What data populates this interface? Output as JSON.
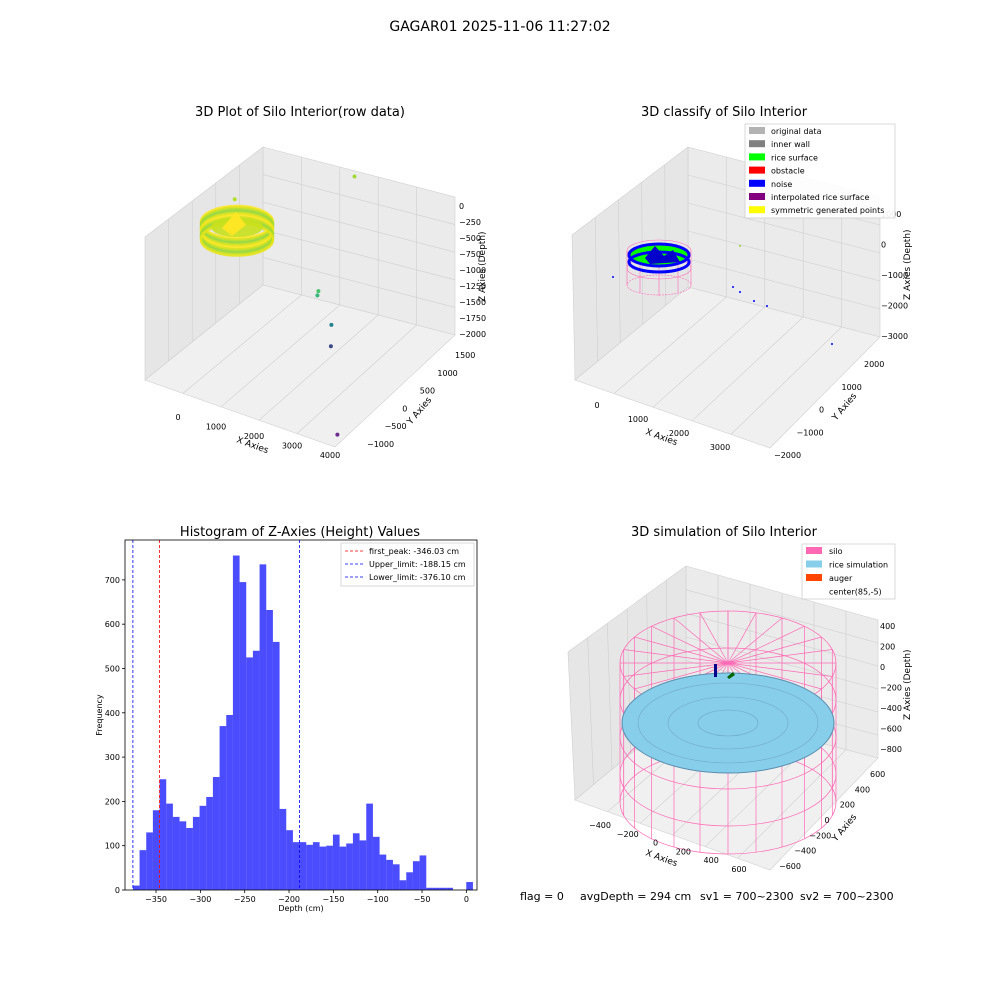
{
  "suptitle": "GAGAR01 2025-11-06 11:27:02",
  "footer": {
    "flag": "flag = 0",
    "avg_depth": "avgDepth = 294 cm",
    "sv1": "sv1 = 700~2300",
    "sv2": "sv2 = 700~2300"
  },
  "colors": {
    "hist_bar": "#0000ff",
    "first_peak_line": "#ff0000",
    "limit_lines": "#0000ff",
    "rice_cloud": "#b9e832",
    "silo": "#ff69b4",
    "rice_simulation": "#87ceeb",
    "auger": "#ff4500"
  },
  "chart_data": [
    {
      "id": "raw3d",
      "type": "scatter",
      "title": "3D Plot of Silo Interior(row data)",
      "xlabel": "X Axies",
      "ylabel": "Y Axies",
      "zlabel": "Z Axies (Depth)",
      "x_ticks": [
        "0",
        "1000",
        "2000",
        "3000",
        "4000"
      ],
      "y_ticks": [
        "−1000",
        "−500",
        "0",
        "500",
        "1000",
        "1500"
      ],
      "z_ticks": [
        "0",
        "−250",
        "−500",
        "−750",
        "−1000",
        "−1250",
        "−1500",
        "−1750",
        "−2000"
      ],
      "points": [
        {
          "x": -250,
          "y": 900,
          "z": -450,
          "color": "#b5de2b"
        },
        {
          "x": 1850,
          "y": 1450,
          "z": 50,
          "color": "#a0da39"
        },
        {
          "x": 2150,
          "y": 400,
          "z": -950,
          "color": "#4ac16d"
        },
        {
          "x": 2150,
          "y": 380,
          "z": -1000,
          "color": "#35b779"
        },
        {
          "x": 2600,
          "y": 250,
          "z": -1250,
          "color": "#26828e"
        },
        {
          "x": 2800,
          "y": 50,
          "z": -1400,
          "color": "#3e4989"
        },
        {
          "x": 4000,
          "y": -950,
          "z": -1850,
          "color": "#6a2c8e"
        }
      ],
      "cluster": "ring of rice points near x 0-500, y 1000-1500, z 0 to -400"
    },
    {
      "id": "classify3d",
      "type": "scatter",
      "title": "3D classify of Silo Interior",
      "xlabel": "X Axies",
      "ylabel": "Y Axies",
      "zlabel": "Z Axies (Depth)",
      "x_ticks": [
        "0",
        "1000",
        "2000",
        "3000"
      ],
      "y_ticks": [
        "−2000",
        "−1000",
        "0",
        "1000",
        "2000"
      ],
      "z_ticks": [
        "1000",
        "0",
        "−1000",
        "−2000",
        "−3000"
      ],
      "legend": [
        {
          "label": "original data",
          "color": "#b3b3b3"
        },
        {
          "label": "inner wall",
          "color": "#808080"
        },
        {
          "label": "rice surface",
          "color": "#00ff00"
        },
        {
          "label": "obstacle",
          "color": "#ff0000"
        },
        {
          "label": "noise",
          "color": "#0000ff"
        },
        {
          "label": "interpolated rice surface",
          "color": "#800080"
        },
        {
          "label": "symmetric generated points",
          "color": "#ffff00"
        }
      ]
    },
    {
      "id": "histogram",
      "type": "bar",
      "title": "Histogram of Z-Axies (Height) Values",
      "xlabel": "Depth (cm)",
      "ylabel": "Frequency",
      "xlim": [
        -385,
        12
      ],
      "ylim": [
        0,
        790
      ],
      "x_ticks": [
        -350,
        -300,
        -250,
        -200,
        -150,
        -100,
        -50,
        0
      ],
      "x_tick_labels": [
        "−350",
        "−300",
        "−250",
        "−200",
        "−150",
        "−100",
        "−50",
        "0"
      ],
      "y_ticks": [
        0,
        100,
        200,
        300,
        400,
        500,
        600,
        700
      ],
      "bin_start": -376.1,
      "bin_width": 7.52,
      "values": [
        10,
        90,
        130,
        180,
        250,
        195,
        165,
        155,
        140,
        165,
        190,
        210,
        255,
        370,
        395,
        755,
        695,
        525,
        540,
        735,
        632,
        560,
        183,
        135,
        108,
        108,
        102,
        108,
        98,
        100,
        125,
        98,
        105,
        128,
        112,
        195,
        120,
        80,
        68,
        58,
        22,
        40,
        65,
        78,
        5,
        5,
        5,
        5,
        0,
        0,
        18
      ],
      "lines": [
        {
          "label": "first_peak: -346.03 cm",
          "x": -346.03,
          "color": "#ff0000"
        },
        {
          "label": "Upper_limit: -188.15 cm",
          "x": -188.15,
          "color": "#0000ff"
        },
        {
          "label": "Lower_limit: -376.10 cm",
          "x": -376.1,
          "color": "#0000ff"
        }
      ]
    },
    {
      "id": "sim3d",
      "type": "scatter",
      "title": "3D simulation of Silo Interior",
      "xlabel": "X Axies",
      "ylabel": "Y Axies",
      "zlabel": "Z Axies (Depth)",
      "x_ticks": [
        "−400",
        "−200",
        "0",
        "200",
        "400",
        "600"
      ],
      "y_ticks": [
        "−600",
        "−400",
        "−200",
        "0",
        "200",
        "400",
        "600"
      ],
      "z_ticks": [
        "400",
        "200",
        "0",
        "−200",
        "−400",
        "−600",
        "−800"
      ],
      "legend": [
        {
          "label": "silo",
          "color": "#ff69b4"
        },
        {
          "label": "rice simulation",
          "color": "#87ceeb"
        },
        {
          "label": "auger",
          "color": "#ff4500"
        },
        {
          "label": "center(85,-5)",
          "color": ""
        }
      ]
    }
  ]
}
